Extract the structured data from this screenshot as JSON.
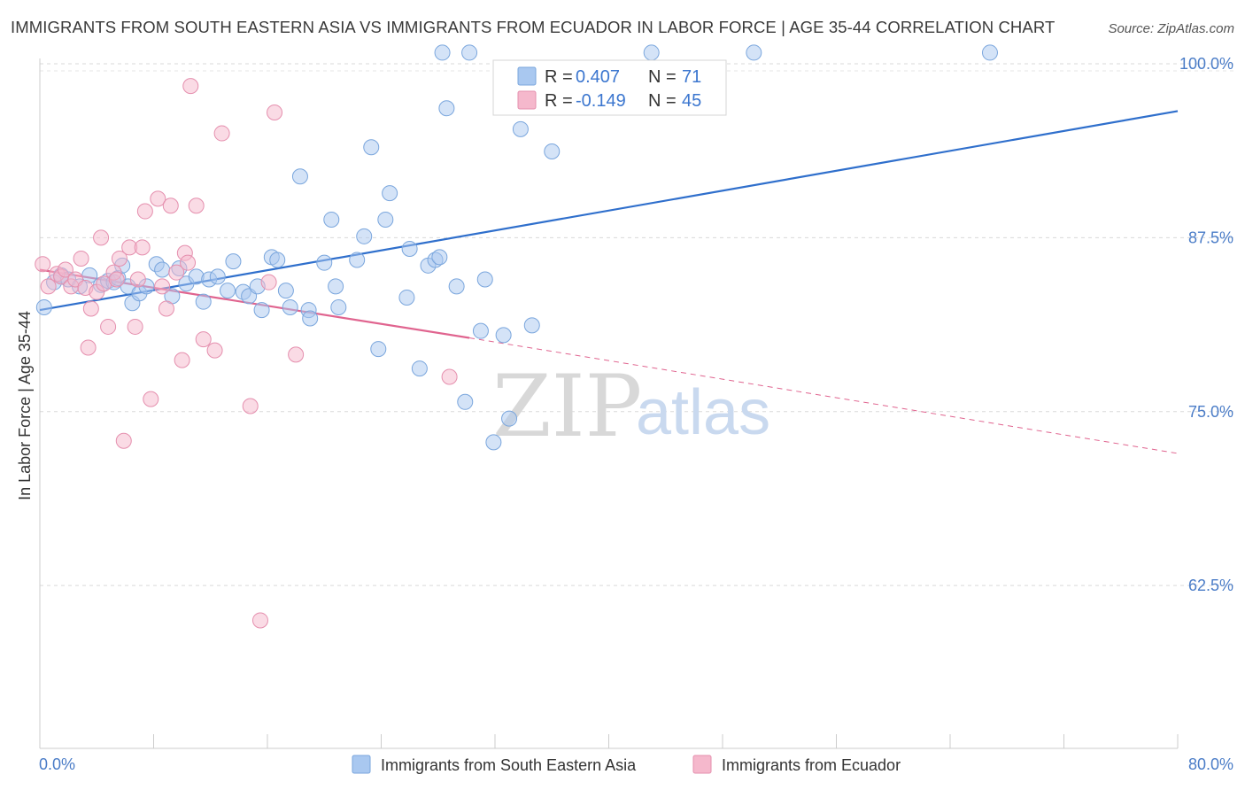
{
  "chart_data": {
    "type": "scatter",
    "title": "IMMIGRANTS FROM SOUTH EASTERN ASIA VS IMMIGRANTS FROM ECUADOR IN LABOR FORCE | AGE 35-44 CORRELATION CHART",
    "source": "Source: ZipAtlas.com",
    "ylabel": "In Labor Force | Age 35-44",
    "xlim": [
      0,
      80
    ],
    "ylim": [
      50.8,
      100
    ],
    "x_tick_labels": [
      "0.0%",
      "80.0%"
    ],
    "y_ticks": [
      62.5,
      75.0,
      87.5,
      100.0
    ],
    "y_tick_labels": [
      "62.5%",
      "75.0%",
      "87.5%",
      "100.0%"
    ],
    "grid": true,
    "legend_position": "bottom",
    "stats": {
      "r_label": "R =",
      "n_label": "N =",
      "rows": [
        {
          "r": "0.407",
          "n": "71",
          "color": "#a9c8f0"
        },
        {
          "r": "-0.149",
          "n": "45",
          "color": "#f5b8cc"
        }
      ]
    },
    "series": [
      {
        "name": "Immigrants from South Eastern Asia",
        "color": "#a9c8f0",
        "stroke": "#7aa6dd",
        "trend_color": "#2f6fcc",
        "trend": {
          "x": [
            0,
            80
          ],
          "y": [
            82.3,
            96.6
          ]
        },
        "points": [
          [
            0.3,
            82.5
          ],
          [
            1.0,
            84.3
          ],
          [
            1.5,
            84.8
          ],
          [
            2.0,
            84.5
          ],
          [
            2.8,
            84.0
          ],
          [
            3.5,
            84.8
          ],
          [
            4.3,
            84.1
          ],
          [
            4.8,
            84.4
          ],
          [
            5.2,
            84.3
          ],
          [
            5.5,
            84.6
          ],
          [
            5.8,
            85.5
          ],
          [
            6.2,
            84.0
          ],
          [
            6.5,
            82.8
          ],
          [
            7.0,
            83.5
          ],
          [
            7.5,
            84.0
          ],
          [
            8.2,
            85.6
          ],
          [
            8.6,
            85.2
          ],
          [
            9.3,
            83.3
          ],
          [
            9.8,
            85.3
          ],
          [
            10.3,
            84.2
          ],
          [
            11.0,
            84.7
          ],
          [
            11.5,
            82.9
          ],
          [
            11.9,
            84.5
          ],
          [
            12.5,
            84.7
          ],
          [
            13.2,
            83.7
          ],
          [
            13.6,
            85.8
          ],
          [
            14.3,
            83.6
          ],
          [
            14.7,
            83.3
          ],
          [
            15.3,
            84.0
          ],
          [
            15.6,
            82.3
          ],
          [
            16.3,
            86.1
          ],
          [
            16.7,
            85.9
          ],
          [
            17.3,
            83.7
          ],
          [
            17.6,
            82.5
          ],
          [
            18.3,
            91.9
          ],
          [
            18.9,
            82.3
          ],
          [
            19.0,
            81.7
          ],
          [
            20.0,
            85.7
          ],
          [
            20.5,
            88.8
          ],
          [
            20.8,
            84.0
          ],
          [
            21.0,
            82.5
          ],
          [
            22.3,
            85.9
          ],
          [
            22.8,
            87.6
          ],
          [
            23.3,
            94.0
          ],
          [
            23.8,
            79.5
          ],
          [
            24.3,
            88.8
          ],
          [
            24.6,
            90.7
          ],
          [
            25.8,
            83.2
          ],
          [
            26.0,
            86.7
          ],
          [
            26.7,
            78.1
          ],
          [
            27.3,
            85.5
          ],
          [
            27.8,
            85.9
          ],
          [
            28.1,
            86.1
          ],
          [
            28.3,
            100.8
          ],
          [
            28.6,
            96.8
          ],
          [
            29.3,
            84.0
          ],
          [
            29.9,
            75.7
          ],
          [
            30.2,
            100.8
          ],
          [
            31.0,
            80.8
          ],
          [
            31.3,
            84.5
          ],
          [
            31.9,
            72.8
          ],
          [
            32.6,
            80.5
          ],
          [
            33.0,
            74.5
          ],
          [
            33.8,
            95.3
          ],
          [
            34.6,
            81.2
          ],
          [
            36.0,
            93.7
          ],
          [
            43.0,
            100.8
          ],
          [
            50.2,
            100.8
          ],
          [
            66.8,
            100.8
          ]
        ]
      },
      {
        "name": "Immigrants from Ecuador",
        "color": "#f5b8cc",
        "stroke": "#e58fae",
        "trend_color": "#e0648f",
        "trend": {
          "x": [
            0,
            30.2
          ],
          "y": [
            85.2,
            80.3
          ]
        },
        "trend_dashed": {
          "x": [
            30.2,
            80
          ],
          "y": [
            80.3,
            72.0
          ]
        },
        "points": [
          [
            0.2,
            85.6
          ],
          [
            0.6,
            84.0
          ],
          [
            1.2,
            84.9
          ],
          [
            1.5,
            84.7
          ],
          [
            1.8,
            85.2
          ],
          [
            2.2,
            84.0
          ],
          [
            2.5,
            84.5
          ],
          [
            2.9,
            86.0
          ],
          [
            3.2,
            83.9
          ],
          [
            3.4,
            79.6
          ],
          [
            3.6,
            82.4
          ],
          [
            4.0,
            83.6
          ],
          [
            4.3,
            87.5
          ],
          [
            4.5,
            84.2
          ],
          [
            4.8,
            81.1
          ],
          [
            5.2,
            85.0
          ],
          [
            5.4,
            84.5
          ],
          [
            5.6,
            86.0
          ],
          [
            5.9,
            72.9
          ],
          [
            6.3,
            86.8
          ],
          [
            6.7,
            81.1
          ],
          [
            6.9,
            84.5
          ],
          [
            7.2,
            86.8
          ],
          [
            7.4,
            89.4
          ],
          [
            7.8,
            75.9
          ],
          [
            8.3,
            90.3
          ],
          [
            8.6,
            84.0
          ],
          [
            8.9,
            82.4
          ],
          [
            9.2,
            89.8
          ],
          [
            9.6,
            85.0
          ],
          [
            10.0,
            78.7
          ],
          [
            10.2,
            86.4
          ],
          [
            10.4,
            85.7
          ],
          [
            10.6,
            98.4
          ],
          [
            11.0,
            89.8
          ],
          [
            11.5,
            80.2
          ],
          [
            12.3,
            79.4
          ],
          [
            12.8,
            95.0
          ],
          [
            14.8,
            75.4
          ],
          [
            15.5,
            60.0
          ],
          [
            16.1,
            84.3
          ],
          [
            16.5,
            96.5
          ],
          [
            18.0,
            79.1
          ],
          [
            28.8,
            77.5
          ]
        ]
      }
    ]
  }
}
